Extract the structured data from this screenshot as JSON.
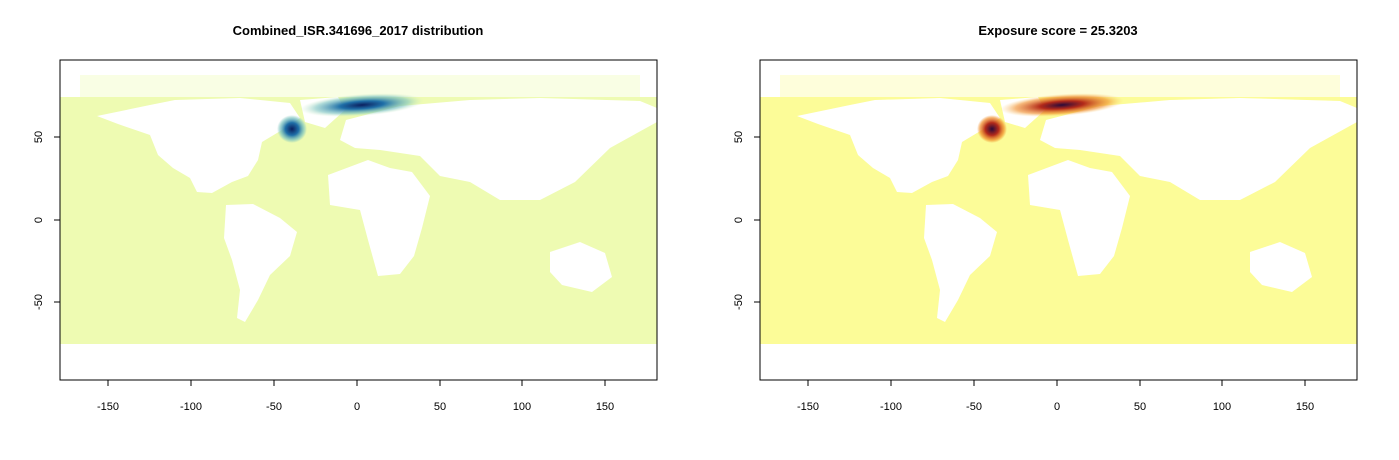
{
  "panels": [
    {
      "title": "Combined_ISR.341696_2017 distribution",
      "ocean_color": "#eefbb2",
      "hotspot_colors": [
        "#0b1f5e",
        "#1f6fa8",
        "#7cc4c0"
      ],
      "x_ticks": [
        "-150",
        "-100",
        "-50",
        "0",
        "50",
        "100",
        "150"
      ],
      "y_ticks": [
        "50",
        "0",
        "-50"
      ]
    },
    {
      "title": "Exposure score = 25.3203",
      "ocean_color": "#fcfc98",
      "hotspot_colors": [
        "#2a0a3a",
        "#b32a1a",
        "#f08a24"
      ],
      "x_ticks": [
        "-150",
        "-100",
        "-50",
        "0",
        "50",
        "100",
        "150"
      ],
      "y_ticks": [
        "50",
        "0",
        "-50"
      ]
    }
  ]
}
